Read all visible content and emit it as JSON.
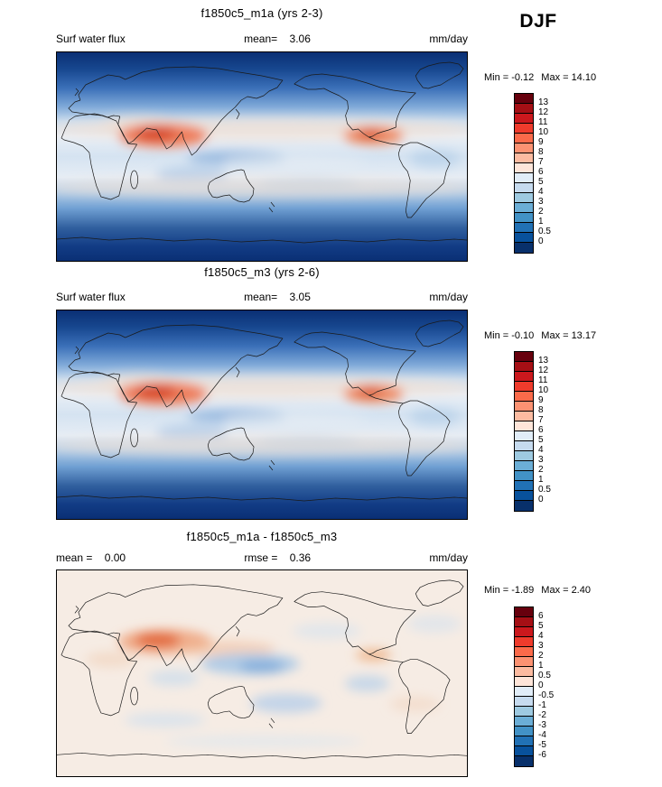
{
  "season": "DJF",
  "panels": [
    {
      "title": "f1850c5_m1a (yrs 2-3)",
      "variable": "Surf water flux",
      "mean_label": "mean=",
      "mean_value": "3.06",
      "units": "mm/day",
      "min_label": "Min =",
      "min_value": "-0.12",
      "max_label": "Max =",
      "max_value": "14.10"
    },
    {
      "title": "f1850c5_m3 (yrs 2-6)",
      "variable": "Surf water flux",
      "mean_label": "mean=",
      "mean_value": "3.05",
      "units": "mm/day",
      "min_label": "Min =",
      "min_value": "-0.10",
      "max_label": "Max =",
      "max_value": "13.17"
    },
    {
      "title": "f1850c5_m1a - f1850c5_m3",
      "mean_label": "mean =",
      "mean_value": "0.00",
      "rmse_label": "rmse =",
      "rmse_value": "0.36",
      "units": "mm/day",
      "min_label": "Min =",
      "min_value": "-1.89",
      "max_label": "Max =",
      "max_value": "2.40"
    }
  ],
  "colorbars": [
    {
      "labels": [
        "13",
        "12",
        "11",
        "10",
        "9",
        "8",
        "7",
        "6",
        "5",
        "4",
        "3",
        "2",
        "1",
        "0.5",
        "0"
      ],
      "colors": [
        "#67000d",
        "#a50f15",
        "#cb181d",
        "#ef3b2c",
        "#fb6a4a",
        "#fc9272",
        "#fcbba1",
        "#fee5d9",
        "#e1edf8",
        "#c6dbef",
        "#9ecae1",
        "#6baed6",
        "#4292c6",
        "#2171b5",
        "#08519c",
        "#08306b"
      ]
    },
    {
      "labels": [
        "13",
        "12",
        "11",
        "10",
        "9",
        "8",
        "7",
        "6",
        "5",
        "4",
        "3",
        "2",
        "1",
        "0.5",
        "0"
      ],
      "colors": [
        "#67000d",
        "#a50f15",
        "#cb181d",
        "#ef3b2c",
        "#fb6a4a",
        "#fc9272",
        "#fcbba1",
        "#fee5d9",
        "#e1edf8",
        "#c6dbef",
        "#9ecae1",
        "#6baed6",
        "#4292c6",
        "#2171b5",
        "#08519c",
        "#08306b"
      ]
    },
    {
      "labels": [
        "6",
        "5",
        "4",
        "3",
        "2",
        "1",
        "0.5",
        "0",
        "-0.5",
        "-1",
        "-2",
        "-3",
        "-4",
        "-5",
        "-6"
      ],
      "colors": [
        "#67000d",
        "#a50f15",
        "#cb181d",
        "#ef3b2c",
        "#fb6a4a",
        "#fc9272",
        "#fcbba1",
        "#fee5d9",
        "#e1edf8",
        "#c6dbef",
        "#9ecae1",
        "#6baed6",
        "#4292c6",
        "#2171b5",
        "#08519c",
        "#08306b"
      ]
    }
  ],
  "chart_data": [
    {
      "type": "heatmap",
      "subtype": "global-latlon-map",
      "title": "f1850c5_m1a (yrs 2-3)",
      "variable": "Surf water flux",
      "season": "DJF",
      "units": "mm/day",
      "mean": 3.06,
      "min": -0.12,
      "max": 14.1,
      "contour_levels": [
        0,
        0.5,
        1,
        2,
        3,
        4,
        5,
        6,
        7,
        8,
        9,
        10,
        11,
        12,
        13
      ],
      "palette": "diverging blue-white-red; low values dark blue (poles), high values dark red (western boundary currents)",
      "legend_position": "right"
    },
    {
      "type": "heatmap",
      "subtype": "global-latlon-map",
      "title": "f1850c5_m3 (yrs 2-6)",
      "variable": "Surf water flux",
      "season": "DJF",
      "units": "mm/day",
      "mean": 3.05,
      "min": -0.1,
      "max": 13.17,
      "contour_levels": [
        0,
        0.5,
        1,
        2,
        3,
        4,
        5,
        6,
        7,
        8,
        9,
        10,
        11,
        12,
        13
      ],
      "palette": "diverging blue-white-red",
      "legend_position": "right"
    },
    {
      "type": "heatmap",
      "subtype": "global-latlon-difference-map",
      "title": "f1850c5_m1a - f1850c5_m3",
      "season": "DJF",
      "units": "mm/day",
      "mean": 0.0,
      "rmse": 0.36,
      "min": -1.89,
      "max": 2.4,
      "contour_levels": [
        -6,
        -5,
        -4,
        -3,
        -2,
        -1,
        -0.5,
        0,
        0.5,
        1,
        2,
        3,
        4,
        5,
        6
      ],
      "palette": "diverging blue-white-red centered on 0; mostly near-zero pale field",
      "legend_position": "right"
    }
  ]
}
